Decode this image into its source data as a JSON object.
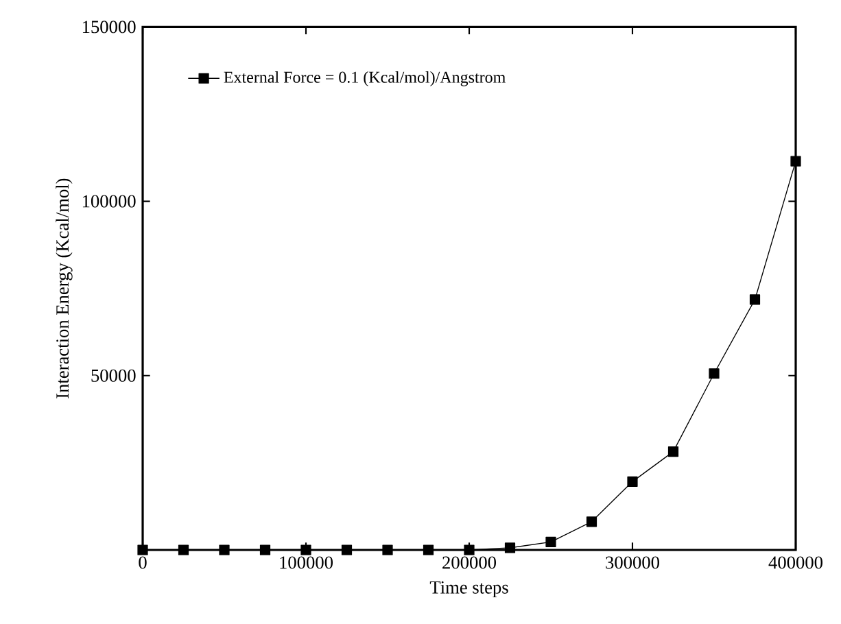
{
  "chart_data": {
    "type": "line",
    "xlabel": "Time steps",
    "ylabel": "Interaction Energy (Kcal/mol)",
    "x": [
      0,
      25000,
      50000,
      75000,
      100000,
      125000,
      150000,
      175000,
      200000,
      225000,
      250000,
      275000,
      300000,
      325000,
      350000,
      375000,
      400000
    ],
    "series": [
      {
        "name": "External Force = 0.1 (Kcal/mol)/Angstrom",
        "color": "#000000",
        "values": [
          0,
          0,
          0,
          0,
          0,
          0,
          0,
          0,
          0,
          600,
          2300,
          8100,
          19600,
          28200,
          50600,
          71800,
          111500
        ]
      }
    ],
    "xlim": [
      0,
      400000
    ],
    "ylim": [
      0,
      150000
    ],
    "xticks": [
      0,
      100000,
      200000,
      300000,
      400000
    ],
    "yticks": [
      50000,
      100000,
      150000
    ],
    "marker": "square",
    "line_style": "solid",
    "legend": "top left",
    "grid": false
  }
}
